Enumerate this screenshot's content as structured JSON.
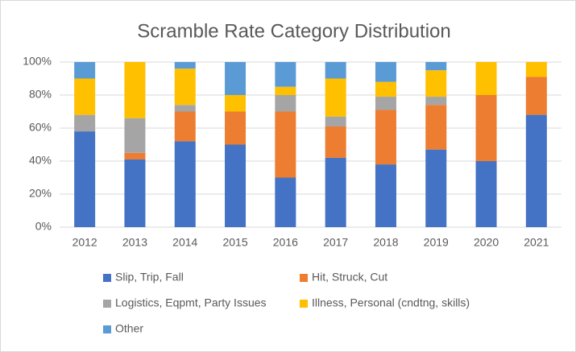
{
  "chart_data": {
    "type": "stacked_bar",
    "title": "Scramble Rate Category Distribution",
    "categories": [
      "2012",
      "2013",
      "2014",
      "2015",
      "2016",
      "2017",
      "2018",
      "2019",
      "2020",
      "2021"
    ],
    "series": [
      {
        "name": "Slip, Trip, Fall",
        "color": "#4472c4",
        "values": [
          58,
          41,
          52,
          50,
          30,
          42,
          38,
          47,
          40,
          68
        ]
      },
      {
        "name": "Hit, Struck, Cut",
        "color": "#ed7d31",
        "values": [
          0,
          4,
          18,
          20,
          40,
          19,
          33,
          27,
          40,
          23
        ]
      },
      {
        "name": "Logistics, Eqpmt, Party Issues",
        "color": "#a5a5a5",
        "values": [
          10,
          21,
          4,
          0,
          10,
          6,
          8,
          5,
          0,
          0
        ]
      },
      {
        "name": "Illness, Personal (cndtng, skills)",
        "color": "#ffc000",
        "values": [
          22,
          34,
          22,
          10,
          5,
          23,
          9,
          16,
          20,
          9
        ]
      },
      {
        "name": "Other",
        "color": "#5b9bd5",
        "values": [
          10,
          0,
          4,
          20,
          15,
          10,
          12,
          5,
          0,
          0
        ]
      }
    ],
    "ylim": [
      0,
      100
    ],
    "yticks": [
      {
        "value": 0,
        "label": "0%"
      },
      {
        "value": 20,
        "label": "20%"
      },
      {
        "value": 40,
        "label": "40%"
      },
      {
        "value": 60,
        "label": "60%"
      },
      {
        "value": 80,
        "label": "80%"
      },
      {
        "value": 100,
        "label": "100%"
      }
    ],
    "grid": true,
    "legend": "bottom"
  }
}
